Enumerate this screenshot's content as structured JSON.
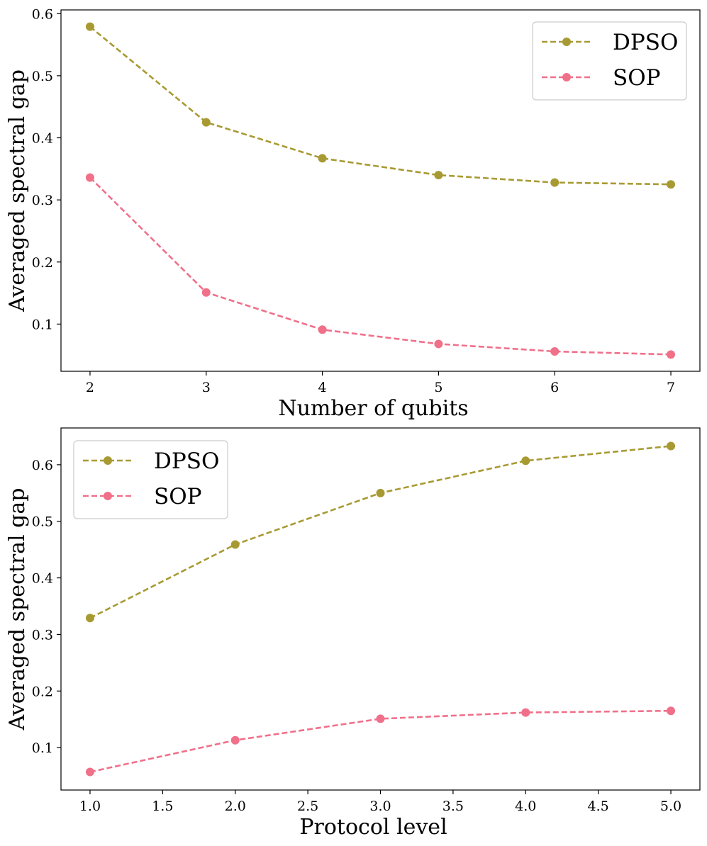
{
  "colors": {
    "dpso": "#a89a33",
    "sop": "#f0708a"
  },
  "chart_data": [
    {
      "type": "line",
      "x": [
        2,
        3,
        4,
        5,
        6,
        7
      ],
      "xlim": [
        1.75,
        7.25
      ],
      "ylim": [
        0.024,
        0.606
      ],
      "xticks": [
        2,
        3,
        4,
        5,
        6,
        7
      ],
      "xtick_labels": [
        "2",
        "3",
        "4",
        "5",
        "6",
        "7"
      ],
      "yticks": [
        0.1,
        0.2,
        0.3,
        0.4,
        0.5,
        0.6
      ],
      "ytick_labels": [
        "0.1",
        "0.2",
        "0.3",
        "0.4",
        "0.5",
        "0.6"
      ],
      "xlabel": "Number of qubits",
      "ylabel": "Averaged spectral gap",
      "legend_position": "top-right",
      "grid": false,
      "series": [
        {
          "name": "DPSO",
          "color_key": "dpso",
          "values": [
            0.579,
            0.425,
            0.367,
            0.34,
            0.328,
            0.325
          ]
        },
        {
          "name": "SOP",
          "color_key": "sop",
          "values": [
            0.336,
            0.151,
            0.091,
            0.068,
            0.056,
            0.051
          ]
        }
      ]
    },
    {
      "type": "line",
      "x": [
        1.0,
        2.0,
        3.0,
        4.0,
        5.0
      ],
      "xlim": [
        0.8,
        5.2
      ],
      "ylim": [
        0.025,
        0.665
      ],
      "xticks": [
        1.0,
        1.5,
        2.0,
        2.5,
        3.0,
        3.5,
        4.0,
        4.5,
        5.0
      ],
      "xtick_labels": [
        "1.0",
        "1.5",
        "2.0",
        "2.5",
        "3.0",
        "3.5",
        "4.0",
        "4.5",
        "5.0"
      ],
      "yticks": [
        0.1,
        0.2,
        0.3,
        0.4,
        0.5,
        0.6
      ],
      "ytick_labels": [
        "0.1",
        "0.2",
        "0.3",
        "0.4",
        "0.5",
        "0.6"
      ],
      "xlabel": "Protocol level",
      "ylabel": "Averaged spectral gap",
      "legend_position": "top-left",
      "grid": false,
      "series": [
        {
          "name": "DPSO",
          "color_key": "dpso",
          "values": [
            0.329,
            0.459,
            0.55,
            0.607,
            0.633
          ]
        },
        {
          "name": "SOP",
          "color_key": "sop",
          "values": [
            0.057,
            0.113,
            0.151,
            0.162,
            0.165
          ]
        }
      ]
    }
  ]
}
